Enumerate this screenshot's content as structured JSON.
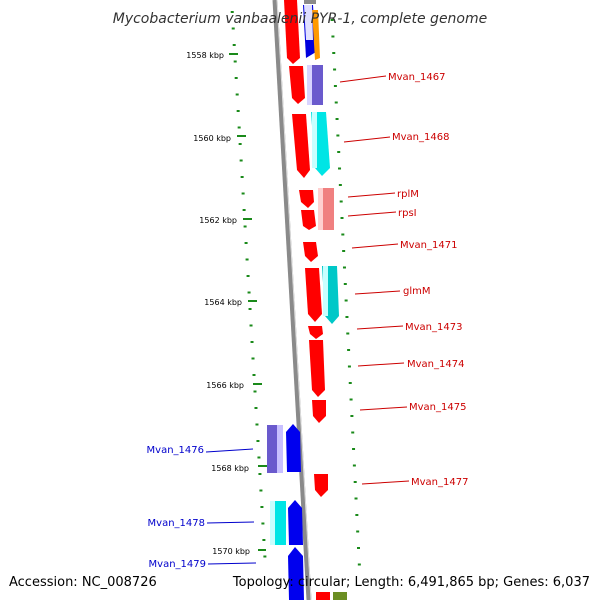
{
  "title": "Mycobacterium vanbaalenii PYR-1, complete genome",
  "footer": {
    "accession": "Accession: NC_008726",
    "summary": "Topology: circular; Length: 6,491,865 bp; Genes: 6,037"
  },
  "colors": {
    "backbone": "#8a8a8a",
    "tick": "#1a8a1a",
    "label_right": "#cc0000",
    "label_left": "#0000cc"
  },
  "ticks": [
    "1558 kbp",
    "1560 kbp",
    "1562 kbp",
    "1564 kbp",
    "1566 kbp",
    "1568 kbp",
    "1570 kbp"
  ],
  "labels": {
    "right": [
      "Mvan_1467",
      "Mvan_1468",
      "rplM",
      "rpsI",
      "Mvan_1471",
      "glmM",
      "Mvan_1473",
      "Mvan_1474",
      "Mvan_1475",
      "Mvan_1477"
    ],
    "left": [
      "Mvan_1476",
      "Mvan_1478",
      "Mvan_1479"
    ]
  }
}
